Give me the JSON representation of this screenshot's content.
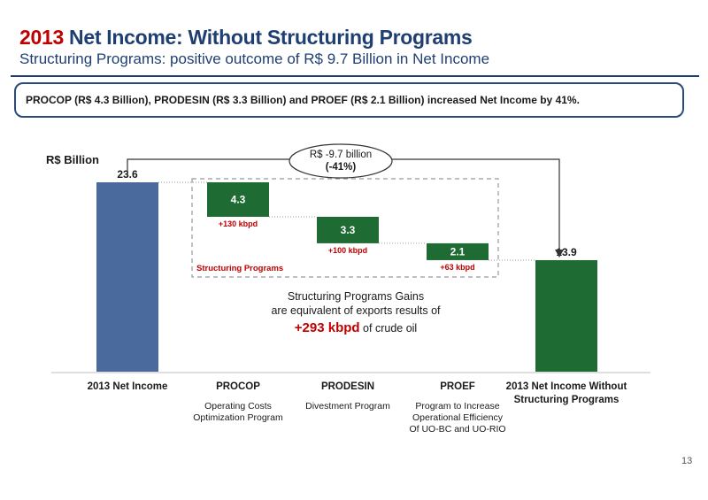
{
  "header": {
    "title_year": "2013",
    "title_rest": " Net Income: Without Structuring Programs",
    "subtitle": "Structuring Programs: positive outcome of R$ 9.7 Billion in Net Income"
  },
  "callout": {
    "text": "PROCOP (R$ 4.3 Billion), PRODESIN (R$ 3.3 Billion) and PROEF (R$ 2.1 Billion) increased Net Income by 41%."
  },
  "chart_data": {
    "type": "bar",
    "subtype": "waterfall",
    "unit_label": "R$ Billion",
    "categories": [
      "2013 Net Income",
      "PROCOP",
      "PRODESIN",
      "PROEF",
      "2013 Net Income Without Structuring Programs"
    ],
    "category_lines": [
      [
        "2013 Net Income"
      ],
      [
        "PROCOP"
      ],
      [
        "PRODESIN"
      ],
      [
        "PROEF"
      ],
      [
        "2013 Net Income Without",
        "Structuring Programs"
      ]
    ],
    "descriptions": [
      [],
      [
        "Operating Costs",
        "Optimization Program"
      ],
      [
        "Divestment Program"
      ],
      [
        "Program to Increase",
        "Operational Efficiency",
        "Of UO-BC and UO-RIO"
      ],
      []
    ],
    "values": [
      23.6,
      -4.3,
      -3.3,
      -2.1,
      13.9
    ],
    "value_labels": [
      "23.6",
      "4.3",
      "3.3",
      "2.1",
      "13.9"
    ],
    "kind": [
      "total",
      "decrease",
      "decrease",
      "decrease",
      "total"
    ],
    "kbpd_labels": [
      "",
      "+130 kbpd",
      "+100 kbpd",
      "+63 kbpd",
      ""
    ],
    "colors": {
      "start": "#4a6a9d",
      "steps": "#1e6b33",
      "end": "#1e6b33",
      "accent": "#c00000",
      "dashed": "#999999"
    },
    "group_label": "Structuring Programs",
    "variance_lines": [
      "R$ -9.7 billion",
      "(-41%)"
    ],
    "gains_text": {
      "line1": "Structuring Programs Gains",
      "line2": "are equivalent of exports results of",
      "highlight_value": "+293 kbpd",
      "tail": " of crude oil"
    },
    "ylim": [
      0,
      23.6
    ]
  },
  "page_number": "13"
}
